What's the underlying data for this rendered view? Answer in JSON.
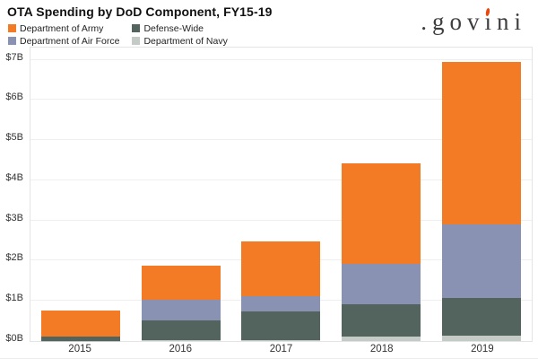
{
  "title": "OTA Spending by DoD Component, FY15-19",
  "logo": {
    "pre": ".gov",
    "accent_char": "ı",
    "post": "ni",
    "text_color": "#3e3e3e",
    "flame_color": "#e8480e"
  },
  "legend": {
    "items": [
      "Department of Army",
      "Defense-Wide",
      "Department of Air Force",
      "Department of Navy"
    ]
  },
  "axes": {
    "y_ticks": [
      "$0B",
      "$1B",
      "$2B",
      "$3B",
      "$4B",
      "$5B",
      "$6B",
      "$7B"
    ],
    "x_ticks": [
      "2015",
      "2016",
      "2017",
      "2018",
      "2019"
    ]
  },
  "chart_data": {
    "type": "bar",
    "stacked": true,
    "title": "OTA Spending by DoD Component, FY15-19",
    "categories": [
      "2015",
      "2016",
      "2017",
      "2018",
      "2019"
    ],
    "unit": "billions USD",
    "ylim": [
      0,
      7.35
    ],
    "grid": true,
    "legend_position": "top-left",
    "series": [
      {
        "name": "Department of Navy",
        "color": "#c4cbc6",
        "values": [
          0.01,
          0.02,
          0.02,
          0.11,
          0.13
        ]
      },
      {
        "name": "Defense-Wide",
        "color": "#53635d",
        "values": [
          0.11,
          0.5,
          0.72,
          0.8,
          0.95
        ]
      },
      {
        "name": "Department of Air Force",
        "color": "#8a92b4",
        "values": [
          0.0,
          0.5,
          0.38,
          1.01,
          1.82
        ]
      },
      {
        "name": "Department of Army",
        "color": "#f47b26",
        "values": [
          0.65,
          0.85,
          1.35,
          2.5,
          4.06
        ]
      }
    ],
    "totals": [
      0.77,
      1.87,
      2.47,
      4.42,
      6.96
    ]
  },
  "colors": {
    "grid": "#efefef",
    "plot_border": "#e4e4e4",
    "axis_text": "#333333",
    "title_text": "#111111"
  }
}
